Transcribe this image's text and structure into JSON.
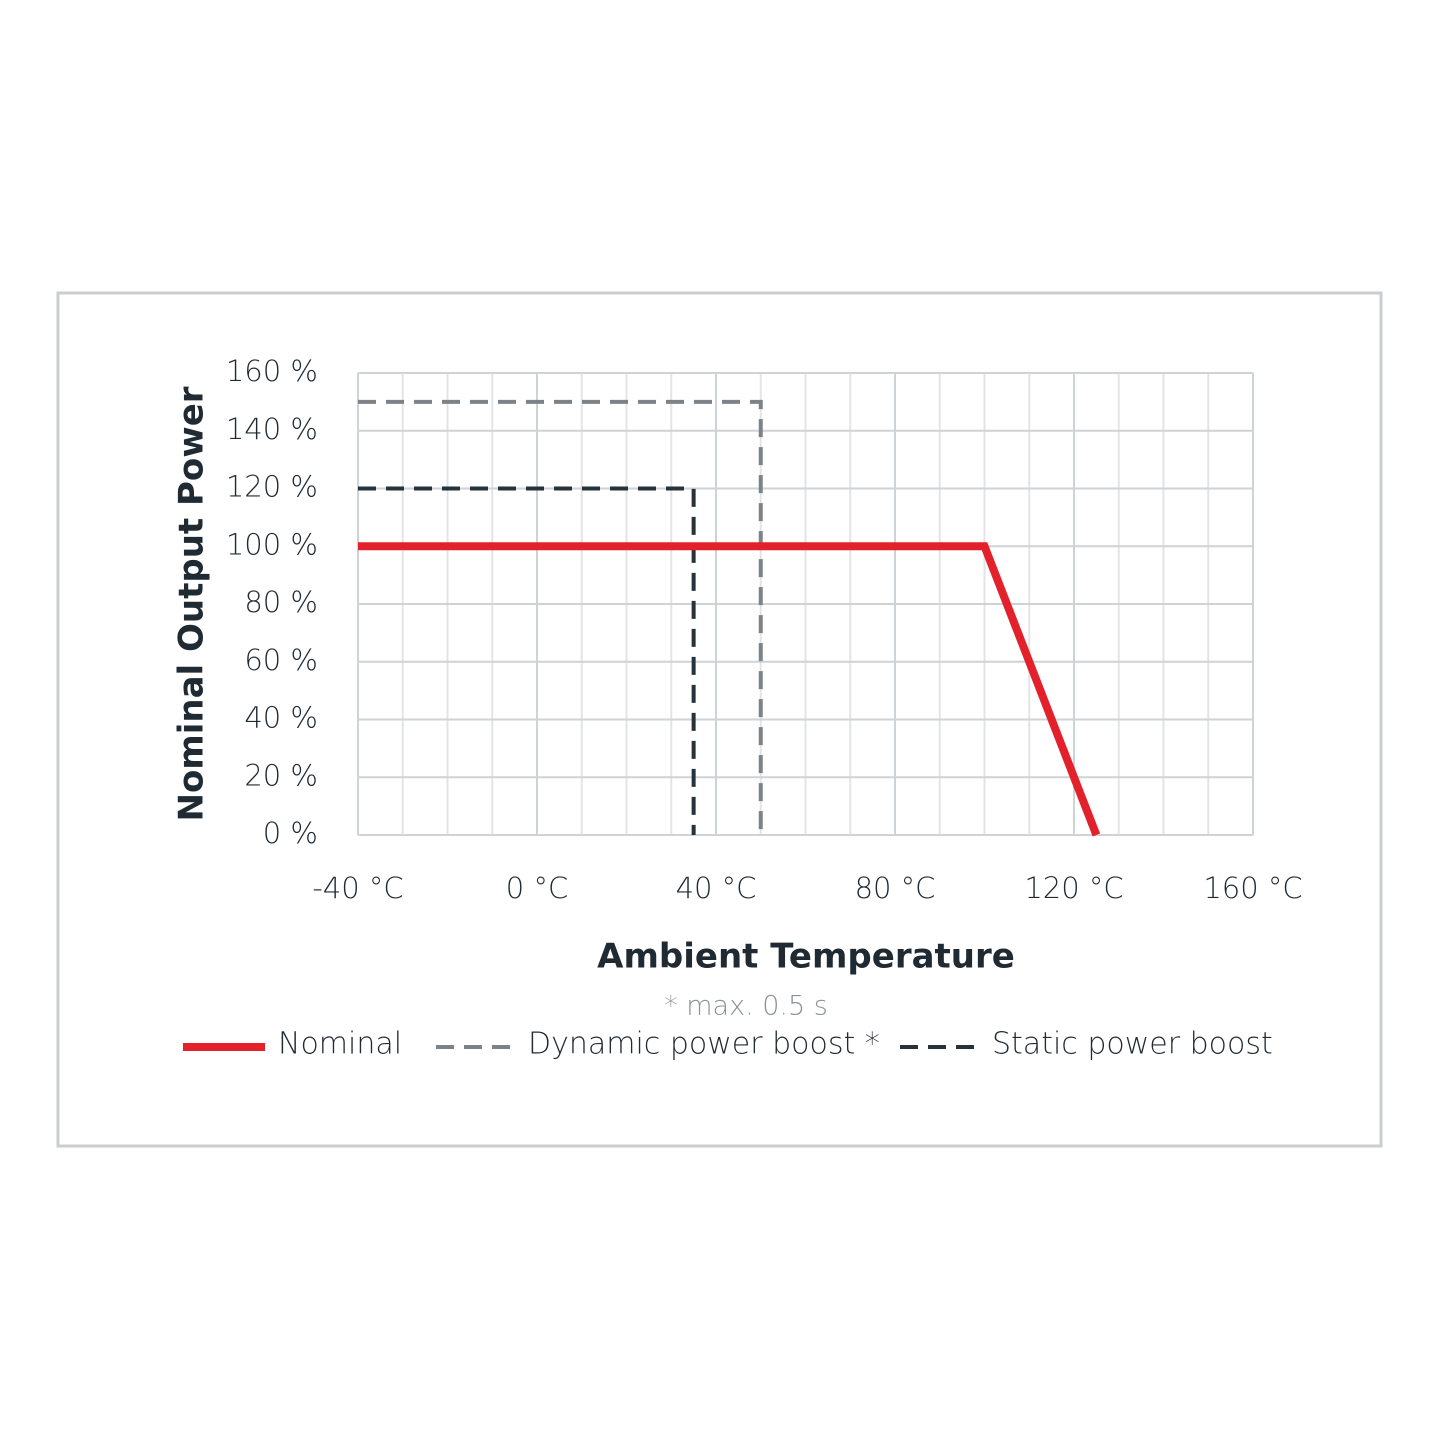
{
  "chart_data": {
    "type": "line",
    "x_label": "Ambient Temperature",
    "y_label": "Nominal Output Power",
    "annotation": "* max. 0.5 s",
    "series": [
      {
        "name": "Nominal",
        "color": "#e3212b",
        "linestyle": "solid",
        "x": [
          -40,
          100,
          125
        ],
        "values": [
          100,
          100,
          0
        ]
      },
      {
        "name": "Dynamic power boost *",
        "color": "#7b8288",
        "linestyle": "dashed",
        "x": [
          -40,
          50,
          50
        ],
        "values": [
          150,
          150,
          0
        ]
      },
      {
        "name": "Static power boost",
        "color": "#26333b",
        "linestyle": "dashed",
        "x": [
          -40,
          35,
          35
        ],
        "values": [
          120,
          120,
          0
        ]
      }
    ],
    "xlim": [
      -40,
      160
    ],
    "xticks": [
      {
        "value": -40,
        "label": "-40 °C"
      },
      {
        "value": 0,
        "label": "0 °C"
      },
      {
        "value": 40,
        "label": "40 °C"
      },
      {
        "value": 80,
        "label": "80 °C"
      },
      {
        "value": 120,
        "label": "120 °C"
      },
      {
        "value": 160,
        "label": "160 °C"
      }
    ],
    "xminorticks": [
      -30,
      -20,
      -10,
      10,
      20,
      30,
      50,
      60,
      70,
      90,
      100,
      110,
      130,
      140,
      150
    ],
    "ylim": [
      0,
      160
    ],
    "yticks": [
      {
        "value": 0,
        "label": "0 %"
      },
      {
        "value": 20,
        "label": "20 %"
      },
      {
        "value": 40,
        "label": "40 %"
      },
      {
        "value": 60,
        "label": "60 %"
      },
      {
        "value": 80,
        "label": "80 %"
      },
      {
        "value": 100,
        "label": "100 %"
      },
      {
        "value": 120,
        "label": "120 %"
      },
      {
        "value": 140,
        "label": "140 %"
      },
      {
        "value": 160,
        "label": "160 %"
      }
    ],
    "grid": true,
    "legend": "bottom"
  }
}
